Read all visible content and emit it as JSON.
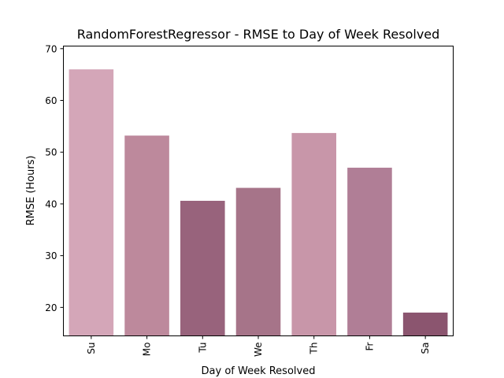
{
  "chart_data": {
    "type": "bar",
    "title": "RandomForestRegressor - RMSE to Day of Week Resolved",
    "xlabel": "Day of Week Resolved",
    "ylabel": "RMSE (Hours)",
    "categories": [
      "Su",
      "Mo",
      "Tu",
      "We",
      "Th",
      "Fr",
      "Sa"
    ],
    "values": [
      66.0,
      53.2,
      40.6,
      43.1,
      53.7,
      47.0,
      19.0
    ],
    "colors": [
      "#d4a6b8",
      "#bd899c",
      "#98637c",
      "#a67489",
      "#c896a9",
      "#b07e96",
      "#8b556f"
    ],
    "ylim": [
      14.5,
      70.5
    ],
    "yticks": [
      20,
      30,
      40,
      50,
      60,
      70
    ],
    "grid": false,
    "legend": false
  }
}
